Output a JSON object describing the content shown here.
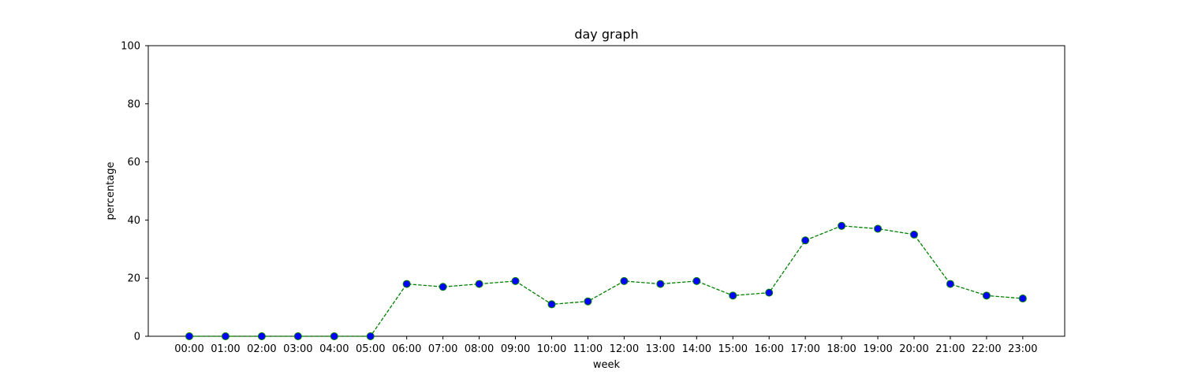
{
  "chart_data": {
    "type": "line",
    "title": "day graph",
    "xlabel": "week",
    "ylabel": "percentage",
    "ylim": [
      0,
      100
    ],
    "yticks": [
      0,
      20,
      40,
      60,
      80,
      100
    ],
    "categories": [
      "00:00",
      "01:00",
      "02:00",
      "03:00",
      "04:00",
      "05:00",
      "06:00",
      "07:00",
      "08:00",
      "09:00",
      "10:00",
      "11:00",
      "12:00",
      "13:00",
      "14:00",
      "15:00",
      "16:00",
      "17:00",
      "18:00",
      "19:00",
      "20:00",
      "21:00",
      "22:00",
      "23:00"
    ],
    "series": [
      {
        "values": [
          0,
          0,
          0,
          0,
          0,
          0,
          18,
          17,
          18,
          19,
          11,
          12,
          19,
          18,
          19,
          14,
          15,
          33,
          38,
          37,
          35,
          18,
          14,
          13
        ],
        "line_color": "#008000",
        "line_style": "dashed",
        "marker": "circle",
        "marker_face_color": "#0000ff",
        "marker_edge_color": "#008000"
      }
    ],
    "grid": false,
    "legend": "none"
  }
}
